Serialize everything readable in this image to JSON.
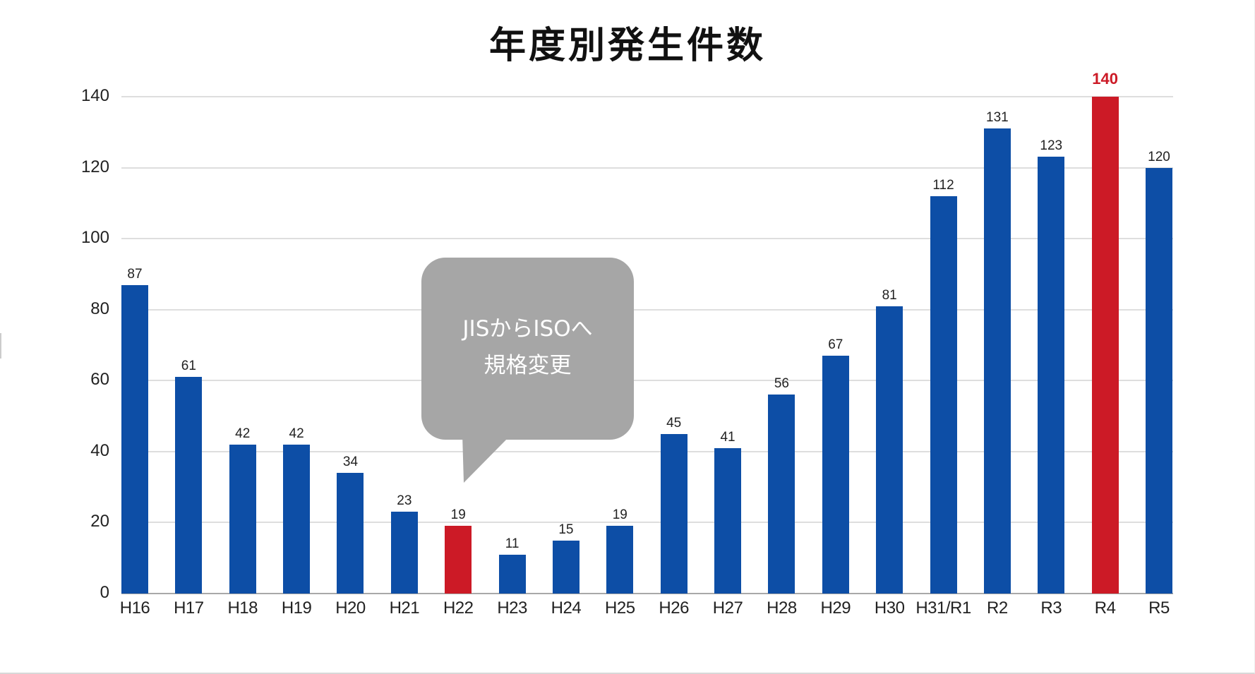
{
  "title": "年度別発生件数",
  "colors": {
    "bar": "#0d4ea6",
    "highlight": "#cc1a26",
    "callout": "#a6a6a6",
    "grid": "#dedede"
  },
  "callout": {
    "line1": "JISからISOへ",
    "line2": "規格変更",
    "points_to": "H22"
  },
  "chart_data": {
    "type": "bar",
    "title": "年度別発生件数",
    "xlabel": "",
    "ylabel": "",
    "ylim": [
      0,
      140
    ],
    "yticks": [
      0,
      20,
      40,
      60,
      80,
      100,
      120,
      140
    ],
    "grid": true,
    "legend": null,
    "categories": [
      "H16",
      "H17",
      "H18",
      "H19",
      "H20",
      "H21",
      "H22",
      "H23",
      "H24",
      "H25",
      "H26",
      "H27",
      "H28",
      "H29",
      "H30",
      "H31/R1",
      "R2",
      "R3",
      "R4",
      "R5"
    ],
    "values": [
      87,
      61,
      42,
      42,
      34,
      23,
      19,
      11,
      15,
      19,
      45,
      41,
      56,
      67,
      81,
      112,
      131,
      123,
      140,
      120
    ],
    "highlighted": [
      "H22",
      "R4"
    ],
    "annotations": [
      {
        "category": "H22",
        "text": "JISからISOへ 規格変更"
      }
    ]
  }
}
